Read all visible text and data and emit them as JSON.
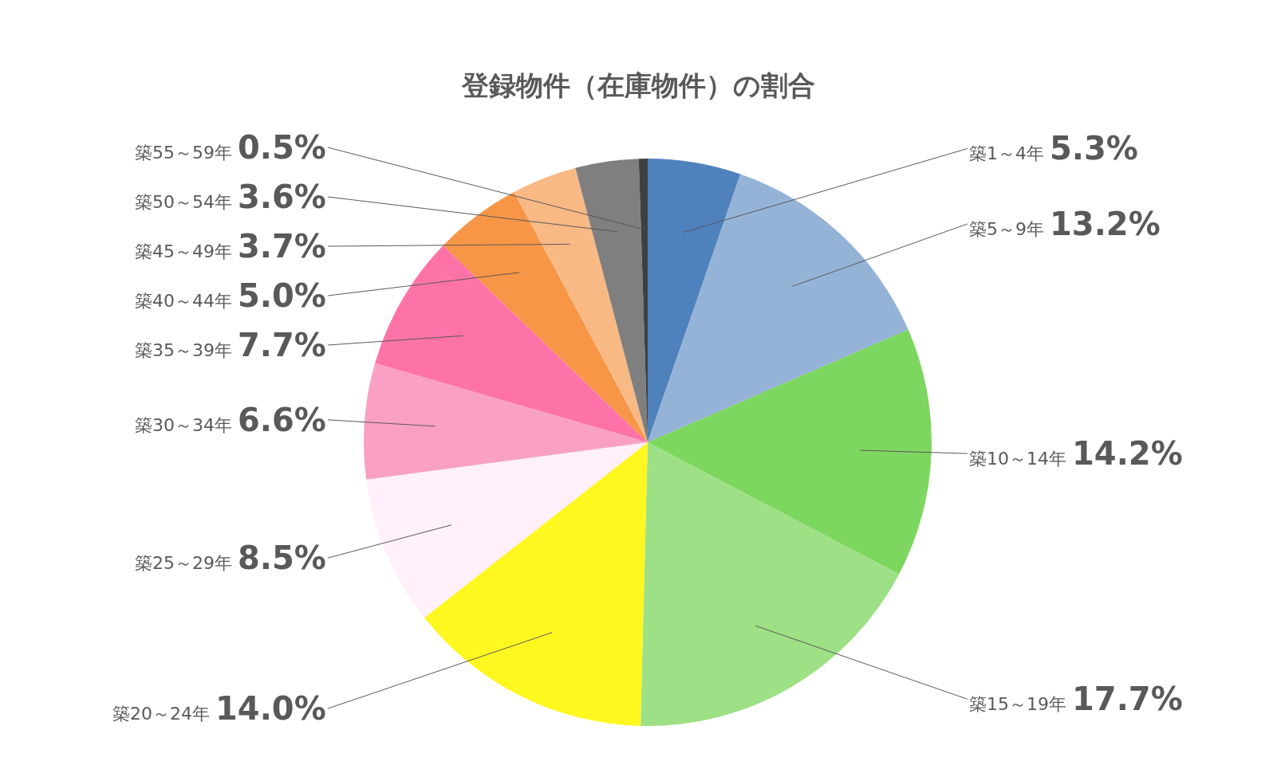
{
  "chart_data": {
    "type": "pie",
    "title": "登録物件（在庫物件）の割合",
    "categories": [
      "築1～4年",
      "築5～9年",
      "築10～14年",
      "築15～19年",
      "築20～24年",
      "築25～29年",
      "築30～34年",
      "築35～39年",
      "築40～44年",
      "築45～49年",
      "築50～54年",
      "築55～59年"
    ],
    "values": [
      5.3,
      13.2,
      14.2,
      17.7,
      14.0,
      8.5,
      6.6,
      7.7,
      5.0,
      3.7,
      3.6,
      0.5
    ],
    "value_labels": [
      "5.3%",
      "13.2%",
      "14.2%",
      "17.7%",
      "14.0%",
      "8.5%",
      "6.6%",
      "7.7%",
      "5.0%",
      "3.7%",
      "3.6%",
      "0.5%"
    ],
    "colors": [
      "#4f81bd",
      "#95b3d7",
      "#7dd65f",
      "#9de085",
      "#fff720",
      "#fff0fb",
      "#f9a0c4",
      "#fd73a8",
      "#f79646",
      "#f9b985",
      "#7f7f7f",
      "#3f3f3f"
    ],
    "legend": false
  }
}
